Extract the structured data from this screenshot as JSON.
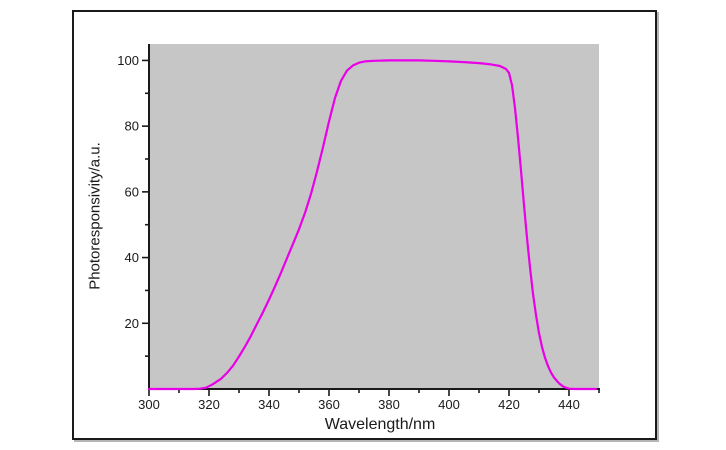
{
  "figure": {
    "background_color": "#ffffff",
    "frame_border_color": "#1a1a1a",
    "frame_shadow_color": "#b5b5b5"
  },
  "chart_data": {
    "type": "line",
    "title": "",
    "xlabel": "Wavelength/nm",
    "ylabel": "Photoresponsivity/a.u.",
    "xlim": [
      300,
      450
    ],
    "ylim": [
      0,
      105
    ],
    "x_major_ticks": [
      300,
      320,
      340,
      360,
      380,
      400,
      420,
      440
    ],
    "x_minor_ticks": [
      310,
      330,
      350,
      370,
      390,
      410,
      430,
      450
    ],
    "y_major_ticks": [
      20,
      40,
      60,
      80,
      100
    ],
    "y_minor_ticks": [
      10,
      30,
      50,
      70,
      90
    ],
    "grid": false,
    "legend_position": "none",
    "plot_background": "#c6c6c6",
    "axis_color": "#1a1a1a",
    "tick_label_color": "#1a1a1a",
    "series": [
      {
        "name": "photoresponsivity",
        "color": "#e800e8",
        "points": [
          [
            300,
            0
          ],
          [
            304,
            0
          ],
          [
            308,
            0
          ],
          [
            312,
            0
          ],
          [
            315,
            0
          ],
          [
            317,
            0.1
          ],
          [
            319,
            0.4
          ],
          [
            321,
            1.3
          ],
          [
            322,
            1.9
          ],
          [
            324,
            3.1
          ],
          [
            326,
            4.9
          ],
          [
            328,
            7.1
          ],
          [
            330,
            9.9
          ],
          [
            332,
            12.9
          ],
          [
            334,
            16.2
          ],
          [
            336,
            19.8
          ],
          [
            338,
            23.4
          ],
          [
            340,
            27.2
          ],
          [
            342,
            31.2
          ],
          [
            344,
            35.4
          ],
          [
            346,
            39.8
          ],
          [
            348,
            44.2
          ],
          [
            350,
            48.6
          ],
          [
            352,
            53.6
          ],
          [
            354,
            59.4
          ],
          [
            356,
            66.2
          ],
          [
            358,
            73.6
          ],
          [
            360,
            81.4
          ],
          [
            362,
            88.6
          ],
          [
            364,
            93.8
          ],
          [
            366,
            96.9
          ],
          [
            368,
            98.5
          ],
          [
            370,
            99.3
          ],
          [
            372,
            99.7
          ],
          [
            375,
            99.9
          ],
          [
            380,
            100
          ],
          [
            385,
            100
          ],
          [
            390,
            100
          ],
          [
            395,
            99.9
          ],
          [
            400,
            99.7
          ],
          [
            405,
            99.5
          ],
          [
            410,
            99.2
          ],
          [
            414,
            98.8
          ],
          [
            417,
            98.3
          ],
          [
            419,
            97.4
          ],
          [
            420,
            96.2
          ],
          [
            421,
            92.5
          ],
          [
            422,
            85.5
          ],
          [
            423,
            76.5
          ],
          [
            424,
            66.5
          ],
          [
            425,
            56
          ],
          [
            426,
            46
          ],
          [
            427,
            37
          ],
          [
            428,
            29
          ],
          [
            429,
            22.5
          ],
          [
            430,
            17
          ],
          [
            431,
            12.8
          ],
          [
            432,
            9.5
          ],
          [
            433,
            7
          ],
          [
            434,
            5
          ],
          [
            435,
            3.5
          ],
          [
            436,
            2.4
          ],
          [
            437,
            1.5
          ],
          [
            438,
            0.8
          ],
          [
            439,
            0.4
          ],
          [
            440,
            0.1
          ],
          [
            442,
            0
          ],
          [
            445,
            0
          ],
          [
            449,
            0
          ]
        ]
      }
    ]
  }
}
